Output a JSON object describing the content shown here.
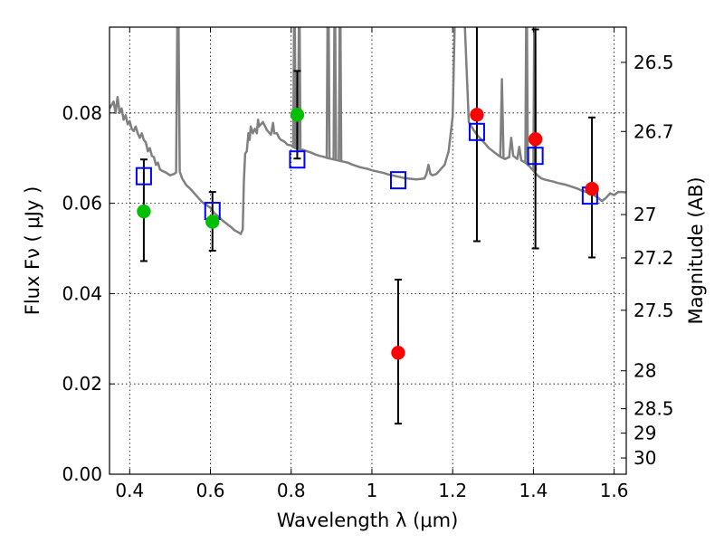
{
  "chart_data": {
    "type": "scatter",
    "xlabel": "Wavelength  λ (μm)",
    "ylabel": "Flux  Fν  ( μJy )",
    "y2label": "Magnitude (AB)",
    "xlim": [
      0.35,
      1.63
    ],
    "ylim": [
      0.0,
      0.099
    ],
    "x_ticks": [
      0.4,
      0.6,
      0.8,
      1.0,
      1.2,
      1.4,
      1.6
    ],
    "x_tick_labels": [
      "0.4",
      "0.6",
      "0.8",
      "1",
      "1.2",
      "1.4",
      "1.6"
    ],
    "y_ticks": [
      0.0,
      0.02,
      0.04,
      0.06,
      0.08
    ],
    "y_tick_labels": [
      "0.00",
      "0.02",
      "0.04",
      "0.06",
      "0.08"
    ],
    "y2_ticks": [
      {
        "label": "26.5",
        "flux": 0.0912
      },
      {
        "label": "26.7",
        "flux": 0.0759
      },
      {
        "label": "27",
        "flux": 0.0575
      },
      {
        "label": "27.2",
        "flux": 0.0479
      },
      {
        "label": "27.5",
        "flux": 0.0363
      },
      {
        "label": "28",
        "flux": 0.0229
      },
      {
        "label": "28.5",
        "flux": 0.0145
      },
      {
        "label": "29",
        "flux": 0.0091
      },
      {
        "label": "30",
        "flux": 0.0036
      }
    ],
    "grid": true,
    "colors": {
      "spectrum": "#808080",
      "model": "#0000ff",
      "detection": "#00c000",
      "nondetection": "#ff0000",
      "errorbar": "#000000"
    },
    "series": [
      {
        "kind": "line",
        "points": [
          [
            0.35,
            0.081
          ],
          [
            0.36,
            0.0825
          ],
          [
            0.365,
            0.08
          ],
          [
            0.37,
            0.0835
          ],
          [
            0.375,
            0.08
          ],
          [
            0.38,
            0.081
          ],
          [
            0.385,
            0.0785
          ],
          [
            0.39,
            0.0795
          ],
          [
            0.395,
            0.0775
          ],
          [
            0.4,
            0.0782
          ],
          [
            0.405,
            0.0765
          ],
          [
            0.41,
            0.076
          ],
          [
            0.415,
            0.077
          ],
          [
            0.42,
            0.0755
          ],
          [
            0.425,
            0.0745
          ],
          [
            0.43,
            0.0755
          ],
          [
            0.435,
            0.074
          ],
          [
            0.44,
            0.0735
          ],
          [
            0.445,
            0.0715
          ],
          [
            0.45,
            0.0722
          ],
          [
            0.455,
            0.0705
          ],
          [
            0.46,
            0.0702
          ],
          [
            0.465,
            0.0685
          ],
          [
            0.47,
            0.069
          ],
          [
            0.475,
            0.0675
          ],
          [
            0.48,
            0.0672
          ],
          [
            0.49,
            0.0668
          ],
          [
            0.5,
            0.0662
          ],
          [
            0.51,
            0.0665
          ],
          [
            0.515,
            0.0668
          ],
          [
            0.518,
            0.0995
          ],
          [
            0.521,
            0.0995
          ],
          [
            0.524,
            0.067
          ],
          [
            0.53,
            0.0655
          ],
          [
            0.54,
            0.064
          ],
          [
            0.55,
            0.0632
          ],
          [
            0.56,
            0.0622
          ],
          [
            0.57,
            0.0612
          ],
          [
            0.58,
            0.0602
          ],
          [
            0.59,
            0.0596
          ],
          [
            0.6,
            0.059
          ],
          [
            0.61,
            0.0578
          ],
          [
            0.62,
            0.057
          ],
          [
            0.63,
            0.0562
          ],
          [
            0.64,
            0.0555
          ],
          [
            0.65,
            0.0548
          ],
          [
            0.66,
            0.054
          ],
          [
            0.67,
            0.0535
          ],
          [
            0.675,
            0.0532
          ],
          [
            0.68,
            0.0542
          ],
          [
            0.683,
            0.065
          ],
          [
            0.686,
            0.071
          ],
          [
            0.69,
            0.0715
          ],
          [
            0.694,
            0.0755
          ],
          [
            0.697,
            0.074
          ],
          [
            0.7,
            0.077
          ],
          [
            0.705,
            0.0755
          ],
          [
            0.71,
            0.0765
          ],
          [
            0.715,
            0.0755
          ],
          [
            0.718,
            0.0785
          ],
          [
            0.72,
            0.077
          ],
          [
            0.73,
            0.078
          ],
          [
            0.74,
            0.0762
          ],
          [
            0.75,
            0.0752
          ],
          [
            0.755,
            0.0778
          ],
          [
            0.758,
            0.0755
          ],
          [
            0.765,
            0.0755
          ],
          [
            0.77,
            0.0745
          ],
          [
            0.775,
            0.074
          ],
          [
            0.78,
            0.0738
          ],
          [
            0.785,
            0.0735
          ],
          [
            0.79,
            0.073
          ],
          [
            0.8,
            0.0728
          ],
          [
            0.81,
            0.0722
          ],
          [
            0.82,
            0.072
          ],
          [
            0.83,
            0.0718
          ],
          [
            0.84,
            0.0715
          ],
          [
            0.85,
            0.0712
          ],
          [
            0.86,
            0.0708
          ],
          [
            0.87,
            0.0705
          ],
          [
            0.88,
            0.0703
          ],
          [
            0.89,
            0.07
          ],
          [
            0.9,
            0.0698
          ],
          [
            0.91,
            0.0696
          ],
          [
            0.92,
            0.0694
          ],
          [
            0.93,
            0.0692
          ],
          [
            0.94,
            0.069
          ],
          [
            0.95,
            0.0686
          ],
          [
            0.96,
            0.0683
          ],
          [
            0.97,
            0.068
          ],
          [
            0.98,
            0.0678
          ],
          [
            0.99,
            0.0676
          ],
          [
            1.0,
            0.0673
          ],
          [
            1.01,
            0.0671
          ],
          [
            1.02,
            0.0669
          ],
          [
            1.03,
            0.0667
          ],
          [
            1.04,
            0.0664
          ],
          [
            1.05,
            0.0662
          ],
          [
            1.06,
            0.066
          ],
          [
            1.07,
            0.0658
          ],
          [
            1.08,
            0.0656
          ],
          [
            1.09,
            0.0655
          ],
          [
            1.1,
            0.0654
          ],
          [
            1.11,
            0.0653
          ],
          [
            1.12,
            0.0654
          ],
          [
            1.13,
            0.0655
          ],
          [
            1.135,
            0.0665
          ],
          [
            1.14,
            0.0685
          ],
          [
            1.145,
            0.0665
          ],
          [
            1.15,
            0.0662
          ],
          [
            1.16,
            0.0665
          ],
          [
            1.17,
            0.0675
          ],
          [
            1.18,
            0.0685
          ],
          [
            1.19,
            0.0715
          ],
          [
            1.2,
            0.0792
          ],
          [
            1.205,
            0.0995
          ],
          [
            1.23,
            0.0995
          ],
          [
            1.24,
            0.078
          ],
          [
            1.25,
            0.0765
          ],
          [
            1.26,
            0.0752
          ],
          [
            1.27,
            0.0742
          ],
          [
            1.28,
            0.0732
          ],
          [
            1.29,
            0.0722
          ],
          [
            1.3,
            0.0715
          ],
          [
            1.31,
            0.0708
          ],
          [
            1.32,
            0.0702
          ],
          [
            1.33,
            0.0698
          ],
          [
            1.34,
            0.0702
          ],
          [
            1.345,
            0.0745
          ],
          [
            1.35,
            0.0705
          ],
          [
            1.36,
            0.0698
          ],
          [
            1.365,
            0.0725
          ],
          [
            1.37,
            0.0695
          ],
          [
            1.38,
            0.069
          ],
          [
            1.39,
            0.0682
          ],
          [
            1.4,
            0.0672
          ],
          [
            1.41,
            0.0662
          ],
          [
            1.42,
            0.0655
          ],
          [
            1.43,
            0.0652
          ],
          [
            1.44,
            0.065
          ],
          [
            1.45,
            0.0648
          ],
          [
            1.46,
            0.0645
          ],
          [
            1.47,
            0.0643
          ],
          [
            1.48,
            0.0641
          ],
          [
            1.49,
            0.0638
          ],
          [
            1.5,
            0.0635
          ],
          [
            1.51,
            0.0632
          ],
          [
            1.52,
            0.0628
          ],
          [
            1.53,
            0.0625
          ],
          [
            1.54,
            0.0622
          ],
          [
            1.55,
            0.0618
          ],
          [
            1.56,
            0.0612
          ],
          [
            1.57,
            0.0605
          ],
          [
            1.58,
            0.0612
          ],
          [
            1.59,
            0.0622
          ],
          [
            1.6,
            0.0618
          ],
          [
            1.61,
            0.0625
          ],
          [
            1.62,
            0.0625
          ],
          [
            1.63,
            0.0624
          ]
        ]
      },
      {
        "kind": "line",
        "points": [
          [
            0.805,
            0.0722
          ],
          [
            0.807,
            0.0995
          ],
          [
            0.809,
            0.0995
          ],
          [
            0.811,
            0.0722
          ]
        ]
      },
      {
        "kind": "line",
        "points": [
          [
            0.817,
            0.0722
          ],
          [
            0.819,
            0.0995
          ],
          [
            0.821,
            0.0995
          ],
          [
            0.823,
            0.0722
          ]
        ]
      },
      {
        "kind": "line",
        "points": [
          [
            0.888,
            0.07
          ],
          [
            0.89,
            0.0995
          ],
          [
            0.893,
            0.0995
          ],
          [
            0.895,
            0.07
          ]
        ]
      },
      {
        "kind": "line",
        "points": [
          [
            0.905,
            0.0698
          ],
          [
            0.907,
            0.0995
          ],
          [
            0.909,
            0.0995
          ],
          [
            0.911,
            0.0698
          ]
        ]
      },
      {
        "kind": "line",
        "points": [
          [
            0.918,
            0.0695
          ],
          [
            0.92,
            0.0995
          ],
          [
            0.922,
            0.0995
          ],
          [
            0.924,
            0.0695
          ]
        ]
      },
      {
        "kind": "line",
        "points": [
          [
            1.38,
            0.069
          ],
          [
            1.382,
            0.0995
          ],
          [
            1.384,
            0.0995
          ],
          [
            1.386,
            0.069
          ]
        ]
      },
      {
        "kind": "line",
        "points": [
          [
            1.4,
            0.0672
          ],
          [
            1.402,
            0.0995
          ],
          [
            1.404,
            0.0995
          ],
          [
            1.406,
            0.0672
          ]
        ]
      },
      {
        "kind": "line",
        "points": [
          [
            1.318,
            0.0702
          ],
          [
            1.322,
            0.0875
          ],
          [
            1.326,
            0.0702
          ]
        ]
      },
      {
        "kind": "squares",
        "points": [
          [
            0.435,
            0.066
          ],
          [
            0.605,
            0.0583
          ],
          [
            0.815,
            0.0697
          ],
          [
            1.065,
            0.0651
          ],
          [
            1.26,
            0.0758
          ],
          [
            1.405,
            0.0705
          ],
          [
            1.54,
            0.0617
          ]
        ]
      },
      {
        "kind": "circles_detection",
        "points": [
          [
            0.435,
            0.0582
          ],
          [
            0.605,
            0.0559
          ],
          [
            0.815,
            0.0796
          ]
        ]
      },
      {
        "kind": "circles_nondetection",
        "points": [
          [
            1.065,
            0.0269
          ],
          [
            1.26,
            0.0796
          ],
          [
            1.405,
            0.0742
          ],
          [
            1.545,
            0.0632
          ]
        ]
      },
      {
        "kind": "errorbars",
        "points": [
          {
            "x": 0.435,
            "lo": 0.0472,
            "hi": 0.0697
          },
          {
            "x": 0.605,
            "lo": 0.0495,
            "hi": 0.0625
          },
          {
            "x": 0.815,
            "lo": 0.0699,
            "hi": 0.0893
          },
          {
            "x": 1.065,
            "lo": 0.0112,
            "hi": 0.0431
          },
          {
            "x": 1.26,
            "lo": 0.0516,
            "hi": 0.0995
          },
          {
            "x": 1.405,
            "lo": 0.05,
            "hi": 0.0985
          },
          {
            "x": 1.545,
            "lo": 0.048,
            "hi": 0.079
          }
        ]
      }
    ]
  }
}
